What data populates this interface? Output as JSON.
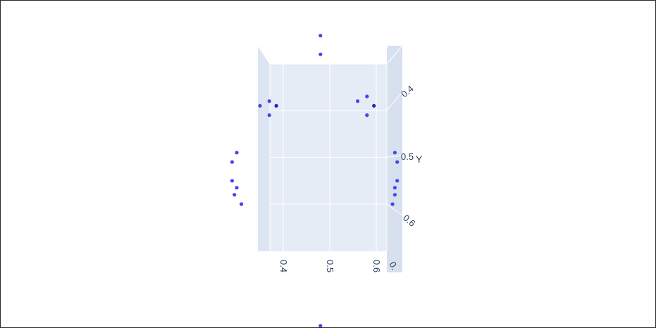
{
  "colors": {
    "marker": "#4545f0",
    "marker_dark": "#1f1fcf",
    "pane_back": "#e5ecf6",
    "pane_side": "#dde5f2",
    "pane_far": "#d7e0ef",
    "grid": "#ffffff",
    "text": "#2a3f5f"
  },
  "chart_data": {
    "type": "scatter",
    "projection": "3d",
    "xaxis": {
      "title": "",
      "ticks": [
        "0.4",
        "0.5",
        "0.6",
        "0."
      ]
    },
    "yaxis": {
      "title": "Y",
      "ticks": [
        "0.4",
        "0.5",
        "0.6"
      ]
    },
    "grid": true,
    "points": [
      {
        "x": 0.48,
        "y": 0.24
      },
      {
        "x": 0.48,
        "y": 0.28
      },
      {
        "x": 0.37,
        "y": 0.38
      },
      {
        "x": 0.35,
        "y": 0.39
      },
      {
        "x": 0.385,
        "y": 0.39,
        "dark": true
      },
      {
        "x": 0.37,
        "y": 0.41
      },
      {
        "x": 0.58,
        "y": 0.37
      },
      {
        "x": 0.56,
        "y": 0.38
      },
      {
        "x": 0.595,
        "y": 0.39,
        "dark": true
      },
      {
        "x": 0.58,
        "y": 0.41
      },
      {
        "x": 0.3,
        "y": 0.49
      },
      {
        "x": 0.29,
        "y": 0.51
      },
      {
        "x": 0.29,
        "y": 0.55
      },
      {
        "x": 0.3,
        "y": 0.565
      },
      {
        "x": 0.295,
        "y": 0.58
      },
      {
        "x": 0.31,
        "y": 0.6
      },
      {
        "x": 0.64,
        "y": 0.49
      },
      {
        "x": 0.645,
        "y": 0.51
      },
      {
        "x": 0.645,
        "y": 0.55
      },
      {
        "x": 0.64,
        "y": 0.565
      },
      {
        "x": 0.64,
        "y": 0.58
      },
      {
        "x": 0.635,
        "y": 0.6
      },
      {
        "x": 0.48,
        "y": 0.86
      }
    ]
  }
}
